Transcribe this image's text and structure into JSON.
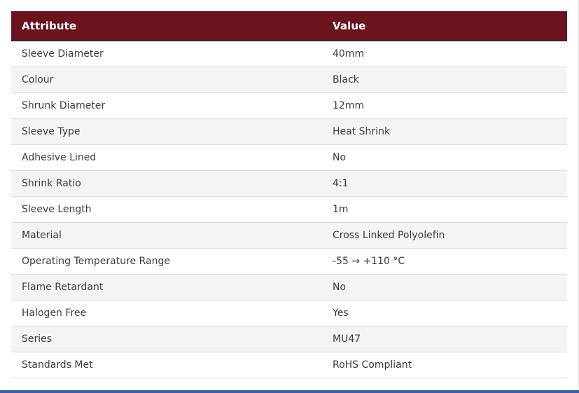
{
  "table": {
    "header": {
      "attribute": "Attribute",
      "value": "Value"
    },
    "rows": [
      {
        "attribute": "Sleeve Diameter",
        "value": "40mm"
      },
      {
        "attribute": "Colour",
        "value": "Black"
      },
      {
        "attribute": "Shrunk Diameter",
        "value": "12mm"
      },
      {
        "attribute": "Sleeve Type",
        "value": "Heat Shrink"
      },
      {
        "attribute": "Adhesive Lined",
        "value": "No"
      },
      {
        "attribute": "Shrink Ratio",
        "value": "4:1"
      },
      {
        "attribute": "Sleeve Length",
        "value": "1m"
      },
      {
        "attribute": "Material",
        "value": "Cross Linked Polyolefin"
      },
      {
        "attribute": "Operating Temperature Range",
        "value": "-55 → +110 °C"
      },
      {
        "attribute": "Flame Retardant",
        "value": "No"
      },
      {
        "attribute": "Halogen Free",
        "value": "Yes"
      },
      {
        "attribute": "Series",
        "value": "MU47"
      },
      {
        "attribute": "Standards Met",
        "value": "RoHS Compliant"
      }
    ]
  },
  "colors": {
    "header_background": "#6b141e",
    "header_text": "#ffffff",
    "row_alt_background": "#f4f4f4",
    "bottom_bar": "#3a5f9f"
  }
}
